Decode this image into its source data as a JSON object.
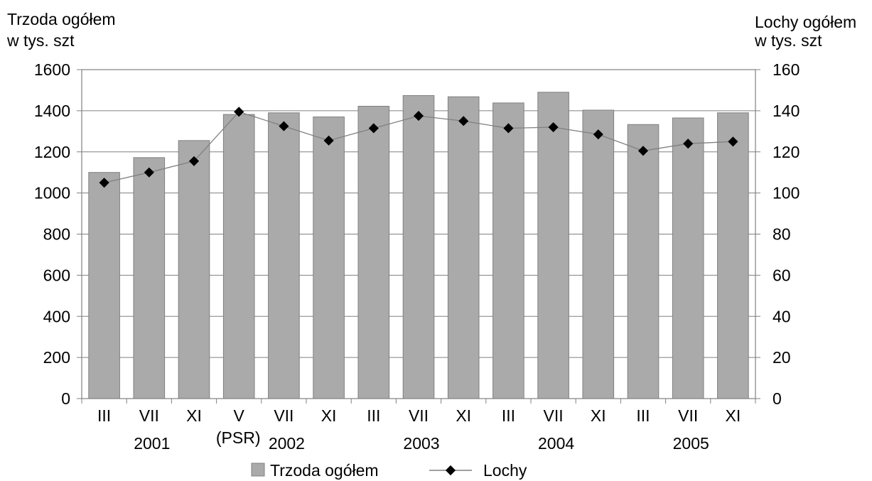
{
  "chart_data": {
    "type": "bar",
    "y_left_label": [
      "Trzoda ogółem",
      "w tys. szt"
    ],
    "y_right_label": [
      "Lochy ogółem",
      "w tys. szt"
    ],
    "categories": [
      "III",
      "VII",
      "XI",
      "V",
      "VII",
      "XI",
      "III",
      "VII",
      "XI",
      "III",
      "VII",
      "XI",
      "III",
      "VII",
      "XI"
    ],
    "category_sublabels": [
      {
        "index": 1,
        "text": "2001"
      },
      {
        "index": 3,
        "text": "(PSR)"
      },
      {
        "index": 4,
        "text": "2002"
      },
      {
        "index": 7,
        "text": "2003"
      },
      {
        "index": 10,
        "text": "2004"
      },
      {
        "index": 13,
        "text": "2005"
      }
    ],
    "left_axis": {
      "min": 0,
      "max": 1600,
      "ticks": [
        0,
        200,
        400,
        600,
        800,
        1000,
        1200,
        1400,
        1600
      ]
    },
    "right_axis": {
      "min": 0,
      "max": 160,
      "ticks": [
        0,
        20,
        40,
        60,
        80,
        100,
        120,
        140,
        160
      ]
    },
    "grid": true,
    "legend_position": "bottom",
    "series": [
      {
        "name": "Trzoda ogółem",
        "type": "bar",
        "axis": "left",
        "color": "#aaaaaa",
        "values": [
          1100,
          1172,
          1255,
          1382,
          1390,
          1370,
          1422,
          1474,
          1468,
          1438,
          1490,
          1403,
          1333,
          1365,
          1390
        ]
      },
      {
        "name": "Lochy",
        "type": "line",
        "axis": "right",
        "color": "#000000",
        "line_color": "#808080",
        "values": [
          105,
          110,
          115.5,
          139.5,
          132.5,
          125.5,
          131.5,
          137.5,
          135,
          131.5,
          132,
          128.5,
          120.5,
          124,
          125
        ]
      }
    ]
  }
}
